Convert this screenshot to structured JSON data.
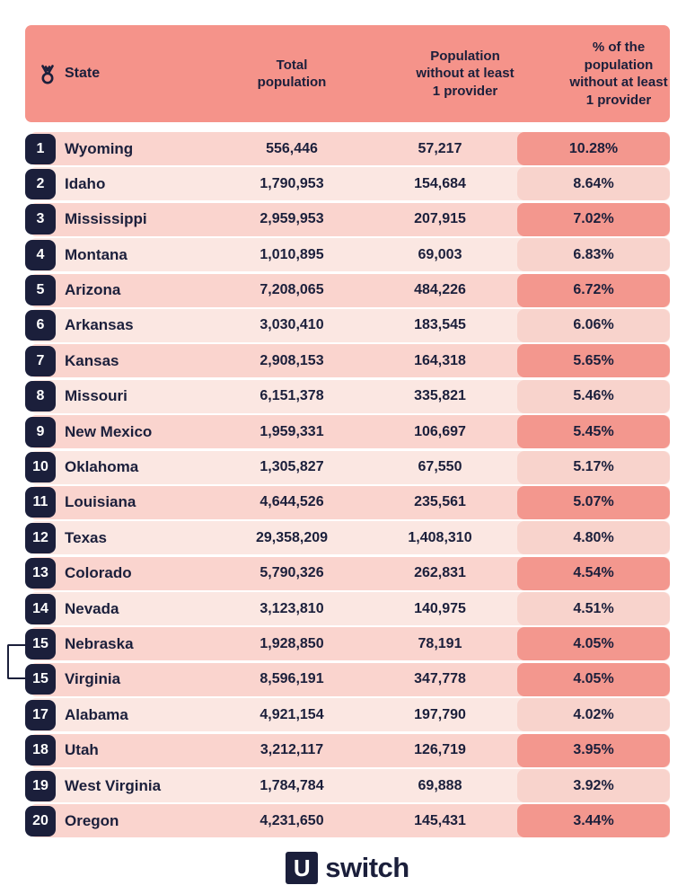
{
  "colors": {
    "page_bg": "#FFFFFF",
    "header_bg": "#F5938A",
    "row_dark_bg": "#FAD4CE",
    "row_dark_pct_bg": "#F3978E",
    "row_light_bg": "#FBE7E2",
    "row_light_pct_bg": "#F8D3CC",
    "badge_bg": "#1B1F3B",
    "text": "#1B1F3B",
    "badge_text": "#FFFFFF"
  },
  "ui": {
    "header": {
      "rank_icon": "medal-icon",
      "state_label": "State",
      "total_label": "Total\npopulation",
      "without_label": "Population\nwithout at least\n1 provider",
      "pct_label": "% of the\npopulation\nwithout at least\n1 provider"
    },
    "footer": {
      "logo_mark": "U",
      "logo_text": "switch"
    }
  },
  "chart_data": {
    "type": "table",
    "title": "States ranked by % of the population without at least 1 broadband provider",
    "columns": [
      "Rank",
      "State",
      "Total population",
      "Population without at least 1 provider",
      "% of the population without at least 1 provider"
    ],
    "rows": [
      {
        "rank": "1",
        "state": "Wyoming",
        "total_population": "556,446",
        "population_without": "57,217",
        "pct_without": "10.28%",
        "shaded": true,
        "tied": false
      },
      {
        "rank": "2",
        "state": "Idaho",
        "total_population": "1,790,953",
        "population_without": "154,684",
        "pct_without": "8.64%",
        "shaded": false,
        "tied": false
      },
      {
        "rank": "3",
        "state": "Mississippi",
        "total_population": "2,959,953",
        "population_without": "207,915",
        "pct_without": "7.02%",
        "shaded": true,
        "tied": false
      },
      {
        "rank": "4",
        "state": "Montana",
        "total_population": "1,010,895",
        "population_without": "69,003",
        "pct_without": "6.83%",
        "shaded": false,
        "tied": false
      },
      {
        "rank": "5",
        "state": "Arizona",
        "total_population": "7,208,065",
        "population_without": "484,226",
        "pct_without": "6.72%",
        "shaded": true,
        "tied": false
      },
      {
        "rank": "6",
        "state": "Arkansas",
        "total_population": "3,030,410",
        "population_without": "183,545",
        "pct_without": "6.06%",
        "shaded": false,
        "tied": false
      },
      {
        "rank": "7",
        "state": "Kansas",
        "total_population": "2,908,153",
        "population_without": "164,318",
        "pct_without": "5.65%",
        "shaded": true,
        "tied": false
      },
      {
        "rank": "8",
        "state": "Missouri",
        "total_population": "6,151,378",
        "population_without": "335,821",
        "pct_without": "5.46%",
        "shaded": false,
        "tied": false
      },
      {
        "rank": "9",
        "state": "New Mexico",
        "total_population": "1,959,331",
        "population_without": "106,697",
        "pct_without": "5.45%",
        "shaded": true,
        "tied": false
      },
      {
        "rank": "10",
        "state": "Oklahoma",
        "total_population": "1,305,827",
        "population_without": "67,550",
        "pct_without": "5.17%",
        "shaded": false,
        "tied": false
      },
      {
        "rank": "11",
        "state": "Louisiana",
        "total_population": "4,644,526",
        "population_without": "235,561",
        "pct_without": "5.07%",
        "shaded": true,
        "tied": false
      },
      {
        "rank": "12",
        "state": "Texas",
        "total_population": "29,358,209",
        "population_without": "1,408,310",
        "pct_without": "4.80%",
        "shaded": false,
        "tied": false
      },
      {
        "rank": "13",
        "state": "Colorado",
        "total_population": "5,790,326",
        "population_without": "262,831",
        "pct_without": "4.54%",
        "shaded": true,
        "tied": false
      },
      {
        "rank": "14",
        "state": "Nevada",
        "total_population": "3,123,810",
        "population_without": "140,975",
        "pct_without": "4.51%",
        "shaded": false,
        "tied": false
      },
      {
        "rank": "15",
        "state": "Nebraska",
        "total_population": "1,928,850",
        "population_without": "78,191",
        "pct_without": "4.05%",
        "shaded": true,
        "tied": true
      },
      {
        "rank": "15",
        "state": "Virginia",
        "total_population": "8,596,191",
        "population_without": "347,778",
        "pct_without": "4.05%",
        "shaded": true,
        "tied": true
      },
      {
        "rank": "17",
        "state": "Alabama",
        "total_population": "4,921,154",
        "population_without": "197,790",
        "pct_without": "4.02%",
        "shaded": false,
        "tied": false
      },
      {
        "rank": "18",
        "state": "Utah",
        "total_population": "3,212,117",
        "population_without": "126,719",
        "pct_without": "3.95%",
        "shaded": true,
        "tied": false
      },
      {
        "rank": "19",
        "state": "West Virginia",
        "total_population": "1,784,784",
        "population_without": "69,888",
        "pct_without": "3.92%",
        "shaded": false,
        "tied": false
      },
      {
        "rank": "20",
        "state": "Oregon",
        "total_population": "4,231,650",
        "population_without": "145,431",
        "pct_without": "3.44%",
        "shaded": true,
        "tied": false
      }
    ]
  }
}
